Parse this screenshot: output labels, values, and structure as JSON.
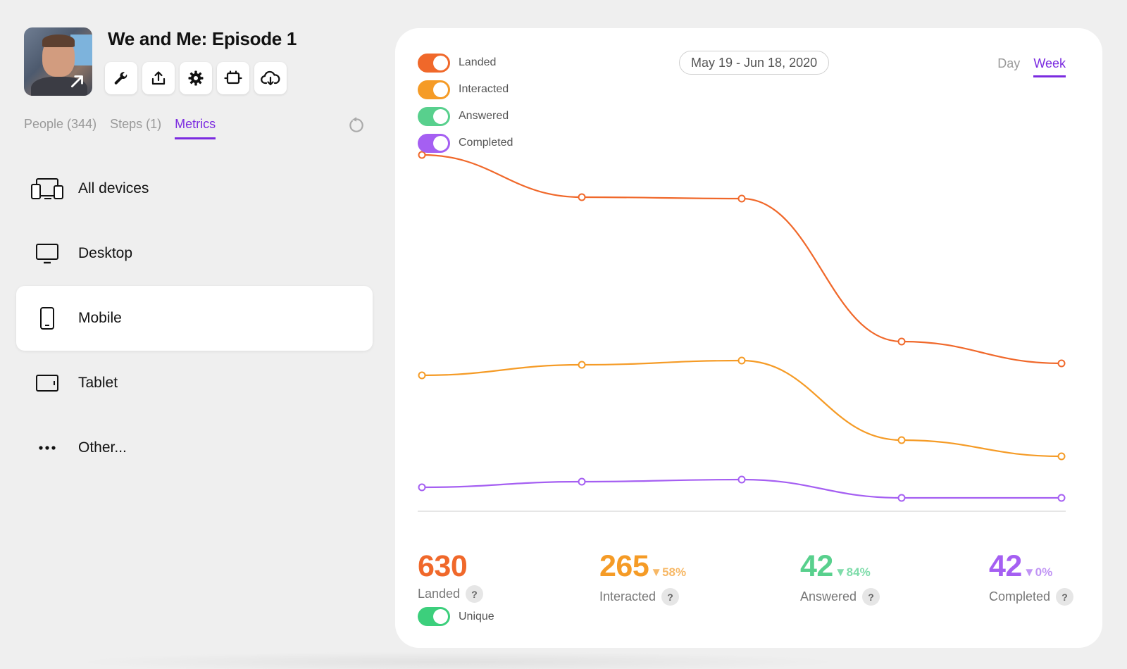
{
  "episode": {
    "title": "We and Me: Episode 1"
  },
  "toolbar": [
    {
      "icon": "wrench-icon",
      "name": "edit-button"
    },
    {
      "icon": "share-icon",
      "name": "share-button"
    },
    {
      "icon": "gear-icon",
      "name": "settings-button"
    },
    {
      "icon": "plugin-icon",
      "name": "integrations-button"
    },
    {
      "icon": "cloud-download-icon",
      "name": "download-button"
    }
  ],
  "tabs": [
    {
      "label": "People (344)",
      "active": false
    },
    {
      "label": "Steps (1)",
      "active": false
    },
    {
      "label": "Metrics",
      "active": true
    }
  ],
  "devices": [
    {
      "label": "All devices",
      "icon": "devices-icon",
      "selected": false
    },
    {
      "label": "Desktop",
      "icon": "desktop-icon",
      "selected": false
    },
    {
      "label": "Mobile",
      "icon": "mobile-icon",
      "selected": true
    },
    {
      "label": "Tablet",
      "icon": "tablet-icon",
      "selected": false
    },
    {
      "label": "Other...",
      "icon": "more-icon",
      "selected": false
    }
  ],
  "legend": [
    {
      "label": "Landed",
      "color": "#f0682a",
      "on": true
    },
    {
      "label": "Interacted",
      "color": "#f59b26",
      "on": true
    },
    {
      "label": "Answered",
      "color": "#58d08d",
      "on": true
    },
    {
      "label": "Completed",
      "color": "#a55ff2",
      "on": true
    }
  ],
  "date_range": "May 19 - Jun 18, 2020",
  "period": {
    "day": "Day",
    "week": "Week",
    "active": "Week"
  },
  "stats": [
    {
      "value": "630",
      "delta": "",
      "label": "Landed",
      "color": "#f0682a"
    },
    {
      "value": "265",
      "delta": "▼58%",
      "label": "Interacted",
      "color": "#f59b26"
    },
    {
      "value": "42",
      "delta": "▼84%",
      "label": "Answered",
      "color": "#58d08d"
    },
    {
      "value": "42",
      "delta": "▼0%",
      "label": "Completed",
      "color": "#a55ff2"
    }
  ],
  "unique": {
    "label": "Unique",
    "on": true
  },
  "chart_data": {
    "type": "line",
    "title": "",
    "xlabel": "",
    "ylabel": "",
    "ylim": [
      0,
      500
    ],
    "grid": false,
    "legend": "top-left",
    "x": [
      1,
      2,
      3,
      4,
      5
    ],
    "series": [
      {
        "name": "Landed",
        "color": "#f0682a",
        "values": [
          490,
          430,
          428,
          225,
          194
        ]
      },
      {
        "name": "Interacted",
        "color": "#f59b26",
        "values": [
          177,
          192,
          198,
          85,
          62
        ]
      },
      {
        "name": "Completed",
        "color": "#a55ff2",
        "values": [
          18,
          26,
          29,
          3,
          3
        ]
      }
    ]
  }
}
